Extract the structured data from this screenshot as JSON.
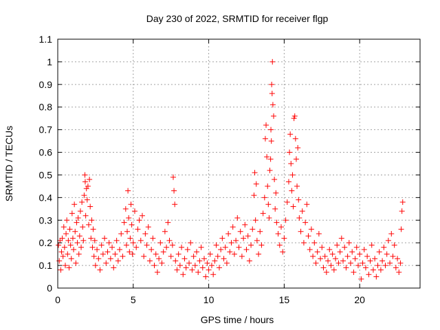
{
  "chart_data": {
    "type": "scatter",
    "title": "Day 230 of 2022, SRMTID for receiver flgp",
    "xlabel": "GPS time / hours",
    "ylabel": "SRMTID / TECUs",
    "xlim": [
      0,
      24
    ],
    "ylim": [
      0,
      1.1
    ],
    "xticks": [
      0,
      5,
      10,
      15,
      20
    ],
    "xtick_labels": [
      "0",
      "5",
      "10",
      "15",
      "20"
    ],
    "yticks": [
      0,
      0.1,
      0.2,
      0.3,
      0.4,
      0.5,
      0.6,
      0.7,
      0.8,
      0.9,
      1.0,
      1.1
    ],
    "ytick_labels": [
      "0",
      "0.1",
      "0.2",
      "0.3",
      "0.4",
      "0.5",
      "0.6",
      "0.7",
      "0.8",
      "0.9",
      "1",
      "1.1"
    ],
    "grid": true,
    "marker": "+",
    "color": "#ff0000",
    "series": [
      {
        "name": "SRMTID",
        "points": [
          [
            0.05,
            0.19
          ],
          [
            0.1,
            0.12
          ],
          [
            0.15,
            0.21
          ],
          [
            0.2,
            0.08
          ],
          [
            0.25,
            0.16
          ],
          [
            0.3,
            0.22
          ],
          [
            0.35,
            0.14
          ],
          [
            0.4,
            0.27
          ],
          [
            0.45,
            0.18
          ],
          [
            0.5,
            0.1
          ],
          [
            0.55,
            0.24
          ],
          [
            0.6,
            0.3
          ],
          [
            0.65,
            0.15
          ],
          [
            0.7,
            0.21
          ],
          [
            0.75,
            0.09
          ],
          [
            0.8,
            0.26
          ],
          [
            0.85,
            0.19
          ],
          [
            0.9,
            0.13
          ],
          [
            0.95,
            0.33
          ],
          [
            1.0,
            0.22
          ],
          [
            1.05,
            0.17
          ],
          [
            1.1,
            0.37
          ],
          [
            1.15,
            0.25
          ],
          [
            1.2,
            0.11
          ],
          [
            1.25,
            0.29
          ],
          [
            1.3,
            0.2
          ],
          [
            1.35,
            0.31
          ],
          [
            1.4,
            0.15
          ],
          [
            1.45,
            0.23
          ],
          [
            1.5,
            0.34
          ],
          [
            1.55,
            0.18
          ],
          [
            1.6,
            0.38
          ],
          [
            1.65,
            0.27
          ],
          [
            1.7,
            0.21
          ],
          [
            1.75,
            0.41
          ],
          [
            1.8,
            0.5
          ],
          [
            1.82,
            0.47
          ],
          [
            1.85,
            0.32
          ],
          [
            1.9,
            0.44
          ],
          [
            1.95,
            0.39
          ],
          [
            2.0,
            0.45
          ],
          [
            2.05,
            0.28
          ],
          [
            2.1,
            0.48
          ],
          [
            2.15,
            0.36
          ],
          [
            2.2,
            0.22
          ],
          [
            2.25,
            0.3
          ],
          [
            2.3,
            0.18
          ],
          [
            2.35,
            0.26
          ],
          [
            2.4,
            0.14
          ],
          [
            2.45,
            0.21
          ],
          [
            2.5,
            0.1
          ],
          [
            2.6,
            0.17
          ],
          [
            2.7,
            0.13
          ],
          [
            2.8,
            0.08
          ],
          [
            2.9,
            0.19
          ],
          [
            3.0,
            0.15
          ],
          [
            3.1,
            0.22
          ],
          [
            3.2,
            0.11
          ],
          [
            3.3,
            0.16
          ],
          [
            3.4,
            0.2
          ],
          [
            3.5,
            0.13
          ],
          [
            3.6,
            0.18
          ],
          [
            3.7,
            0.09
          ],
          [
            3.8,
            0.15
          ],
          [
            3.9,
            0.21
          ],
          [
            4.0,
            0.12
          ],
          [
            4.1,
            0.17
          ],
          [
            4.2,
            0.24
          ],
          [
            4.3,
            0.14
          ],
          [
            4.4,
            0.29
          ],
          [
            4.5,
            0.35
          ],
          [
            4.55,
            0.19
          ],
          [
            4.6,
            0.25
          ],
          [
            4.65,
            0.43
          ],
          [
            4.7,
            0.31
          ],
          [
            4.75,
            0.16
          ],
          [
            4.8,
            0.22
          ],
          [
            4.85,
            0.37
          ],
          [
            4.9,
            0.28
          ],
          [
            4.95,
            0.15
          ],
          [
            5.0,
            0.2
          ],
          [
            5.1,
            0.34
          ],
          [
            5.2,
            0.18
          ],
          [
            5.3,
            0.26
          ],
          [
            5.4,
            0.3
          ],
          [
            5.5,
            0.21
          ],
          [
            5.6,
            0.32
          ],
          [
            5.7,
            0.14
          ],
          [
            5.8,
            0.24
          ],
          [
            5.9,
            0.19
          ],
          [
            6.0,
            0.27
          ],
          [
            6.1,
            0.12
          ],
          [
            6.2,
            0.17
          ],
          [
            6.3,
            0.22
          ],
          [
            6.4,
            0.1
          ],
          [
            6.5,
            0.15
          ],
          [
            6.6,
            0.07
          ],
          [
            6.7,
            0.13
          ],
          [
            6.8,
            0.2
          ],
          [
            6.9,
            0.11
          ],
          [
            7.0,
            0.16
          ],
          [
            7.1,
            0.25
          ],
          [
            7.2,
            0.18
          ],
          [
            7.3,
            0.29
          ],
          [
            7.4,
            0.21
          ],
          [
            7.5,
            0.14
          ],
          [
            7.6,
            0.19
          ],
          [
            7.65,
            0.49
          ],
          [
            7.7,
            0.43
          ],
          [
            7.75,
            0.37
          ],
          [
            7.8,
            0.12
          ],
          [
            7.9,
            0.08
          ],
          [
            8.0,
            0.15
          ],
          [
            8.1,
            0.1
          ],
          [
            8.2,
            0.18
          ],
          [
            8.3,
            0.06
          ],
          [
            8.4,
            0.13
          ],
          [
            8.5,
            0.09
          ],
          [
            8.6,
            0.17
          ],
          [
            8.7,
            0.11
          ],
          [
            8.8,
            0.2
          ],
          [
            8.9,
            0.08
          ],
          [
            9.0,
            0.14
          ],
          [
            9.1,
            0.1
          ],
          [
            9.2,
            0.16
          ],
          [
            9.3,
            0.07
          ],
          [
            9.4,
            0.12
          ],
          [
            9.5,
            0.18
          ],
          [
            9.6,
            0.09
          ],
          [
            9.7,
            0.13
          ],
          [
            9.8,
            0.05
          ],
          [
            9.9,
            0.11
          ],
          [
            10.0,
            0.08
          ],
          [
            10.1,
            0.15
          ],
          [
            10.2,
            0.1
          ],
          [
            10.3,
            0.06
          ],
          [
            10.4,
            0.12
          ],
          [
            10.5,
            0.19
          ],
          [
            10.6,
            0.14
          ],
          [
            10.7,
            0.09
          ],
          [
            10.8,
            0.17
          ],
          [
            10.9,
            0.22
          ],
          [
            11.0,
            0.13
          ],
          [
            11.1,
            0.18
          ],
          [
            11.2,
            0.11
          ],
          [
            11.3,
            0.24
          ],
          [
            11.4,
            0.16
          ],
          [
            11.5,
            0.2
          ],
          [
            11.6,
            0.27
          ],
          [
            11.7,
            0.15
          ],
          [
            11.8,
            0.21
          ],
          [
            11.9,
            0.31
          ],
          [
            12.0,
            0.18
          ],
          [
            12.1,
            0.25
          ],
          [
            12.2,
            0.14
          ],
          [
            12.3,
            0.22
          ],
          [
            12.4,
            0.28
          ],
          [
            12.5,
            0.17
          ],
          [
            12.6,
            0.23
          ],
          [
            12.7,
            0.12
          ],
          [
            12.8,
            0.19
          ],
          [
            12.9,
            0.26
          ],
          [
            13.0,
            0.41
          ],
          [
            13.05,
            0.51
          ],
          [
            13.1,
            0.3
          ],
          [
            13.15,
            0.46
          ],
          [
            13.2,
            0.21
          ],
          [
            13.3,
            0.15
          ],
          [
            13.4,
            0.25
          ],
          [
            13.5,
            0.19
          ],
          [
            13.6,
            0.33
          ],
          [
            13.7,
            0.4
          ],
          [
            13.75,
            0.66
          ],
          [
            13.8,
            0.72
          ],
          [
            13.85,
            0.58
          ],
          [
            13.9,
            0.45
          ],
          [
            13.95,
            0.37
          ],
          [
            14.0,
            0.31
          ],
          [
            14.05,
            0.52
          ],
          [
            14.1,
            0.57
          ],
          [
            14.12,
            0.7
          ],
          [
            14.15,
            0.65
          ],
          [
            14.17,
            0.9
          ],
          [
            14.2,
            0.86
          ],
          [
            14.22,
            1.0
          ],
          [
            14.25,
            0.81
          ],
          [
            14.3,
            0.76
          ],
          [
            14.35,
            0.48
          ],
          [
            14.4,
            0.35
          ],
          [
            14.45,
            0.42
          ],
          [
            14.5,
            0.29
          ],
          [
            14.6,
            0.24
          ],
          [
            14.7,
            0.19
          ],
          [
            14.8,
            0.27
          ],
          [
            14.9,
            0.16
          ],
          [
            15.0,
            0.22
          ],
          [
            15.1,
            0.3
          ],
          [
            15.2,
            0.38
          ],
          [
            15.3,
            0.47
          ],
          [
            15.35,
            0.6
          ],
          [
            15.4,
            0.68
          ],
          [
            15.45,
            0.55
          ],
          [
            15.5,
            0.43
          ],
          [
            15.55,
            0.5
          ],
          [
            15.6,
            0.36
          ],
          [
            15.65,
            0.75
          ],
          [
            15.7,
            0.76
          ],
          [
            15.75,
            0.66
          ],
          [
            15.8,
            0.57
          ],
          [
            15.85,
            0.45
          ],
          [
            15.9,
            0.62
          ],
          [
            15.95,
            0.39
          ],
          [
            16.0,
            0.31
          ],
          [
            16.1,
            0.25
          ],
          [
            16.2,
            0.34
          ],
          [
            16.3,
            0.2
          ],
          [
            16.4,
            0.29
          ],
          [
            16.5,
            0.37
          ],
          [
            16.6,
            0.23
          ],
          [
            16.7,
            0.17
          ],
          [
            16.8,
            0.26
          ],
          [
            16.9,
            0.14
          ],
          [
            17.0,
            0.2
          ],
          [
            17.1,
            0.11
          ],
          [
            17.2,
            0.16
          ],
          [
            17.3,
            0.24
          ],
          [
            17.4,
            0.13
          ],
          [
            17.5,
            0.18
          ],
          [
            17.6,
            0.09
          ],
          [
            17.7,
            0.14
          ],
          [
            17.8,
            0.07
          ],
          [
            17.9,
            0.12
          ],
          [
            18.0,
            0.17
          ],
          [
            18.1,
            0.1
          ],
          [
            18.2,
            0.15
          ],
          [
            18.3,
            0.08
          ],
          [
            18.4,
            0.13
          ],
          [
            18.5,
            0.19
          ],
          [
            18.6,
            0.11
          ],
          [
            18.7,
            0.16
          ],
          [
            18.8,
            0.22
          ],
          [
            18.9,
            0.12
          ],
          [
            19.0,
            0.18
          ],
          [
            19.1,
            0.09
          ],
          [
            19.2,
            0.14
          ],
          [
            19.3,
            0.2
          ],
          [
            19.4,
            0.11
          ],
          [
            19.5,
            0.16
          ],
          [
            19.6,
            0.07
          ],
          [
            19.7,
            0.13
          ],
          [
            19.8,
            0.18
          ],
          [
            19.9,
            0.1
          ],
          [
            20.0,
            0.15
          ],
          [
            20.1,
            0.04
          ],
          [
            20.2,
            0.11
          ],
          [
            20.3,
            0.17
          ],
          [
            20.4,
            0.09
          ],
          [
            20.5,
            0.14
          ],
          [
            20.6,
            0.06
          ],
          [
            20.7,
            0.12
          ],
          [
            20.8,
            0.19
          ],
          [
            20.9,
            0.08
          ],
          [
            21.0,
            0.13
          ],
          [
            21.1,
            0.05
          ],
          [
            21.2,
            0.1
          ],
          [
            21.3,
            0.16
          ],
          [
            21.4,
            0.08
          ],
          [
            21.5,
            0.12
          ],
          [
            21.6,
            0.18
          ],
          [
            21.7,
            0.1
          ],
          [
            21.8,
            0.15
          ],
          [
            21.9,
            0.21
          ],
          [
            22.0,
            0.11
          ],
          [
            22.1,
            0.24
          ],
          [
            22.2,
            0.14
          ],
          [
            22.3,
            0.19
          ],
          [
            22.4,
            0.09
          ],
          [
            22.5,
            0.13
          ],
          [
            22.6,
            0.07
          ],
          [
            22.7,
            0.11
          ],
          [
            22.75,
            0.26
          ],
          [
            22.8,
            0.34
          ],
          [
            22.85,
            0.38
          ]
        ]
      }
    ]
  }
}
